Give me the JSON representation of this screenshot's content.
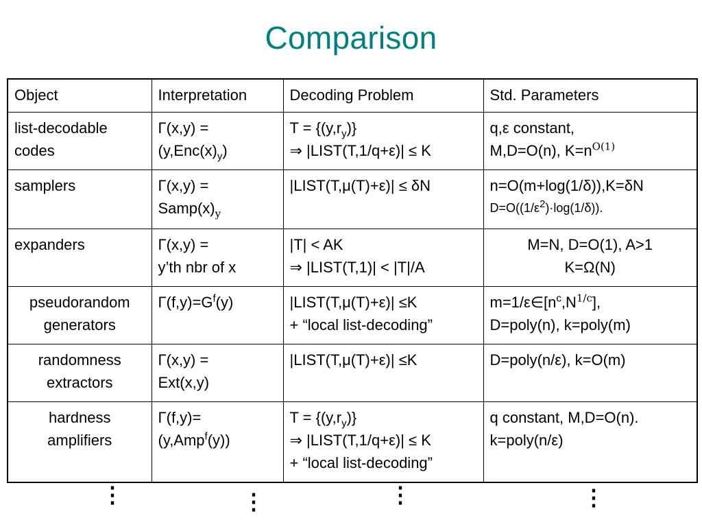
{
  "title": "Comparison",
  "table": {
    "headers": [
      "Object",
      "Interpretation",
      "Decoding Problem",
      "Std. Parameters"
    ],
    "rows": [
      {
        "object": "list-decodable codes",
        "interp_a": "Γ(x,y) =",
        "interp_b": "(y,Enc(x)",
        "interp_b_sub": "y",
        "interp_b_end": ")",
        "dec_a": "T = {(y,r",
        "dec_a_sub": "y",
        "dec_a_end": ")}",
        "dec_b": "⇒ |LIST(T,1/q+ε)| ≤ K",
        "par_a": "q,ε constant,",
        "par_b": "M,D=O(n), K=n",
        "par_b_sup": "O(1)"
      },
      {
        "object": "samplers",
        "interp_a": "Γ(x,y) =",
        "interp_b": "Samp(x)",
        "interp_b_sub": "y",
        "dec_a": "|LIST(T,μ(T)+ε)| ≤ δN",
        "par_a": "n=O(m+log(1/δ)),K=δN",
        "par_b": "D=O((1/ε",
        "par_b_sup": "2",
        "par_b_end": ")·log(1/δ))."
      },
      {
        "object": "expanders",
        "interp_a": "Γ(x,y) =",
        "interp_b": "y’th nbr of x",
        "dec_a": "|T| < AK",
        "dec_b": "⇒ |LIST(T,1)| < |T|/A",
        "par_a": "M=N,  D=O(1), A>1",
        "par_b": "K=Ω(N)"
      },
      {
        "object": "pseudorandom generators",
        "interp_a": "Γ(f,y)=G",
        "interp_a_sup": "f",
        "interp_a_end": "(y)",
        "dec_a": "|LIST(T,μ(T)+ε)| ≤K",
        "dec_b": "+ “local list-decoding”",
        "par_a": "m=1/ε∈[n",
        "par_a_sup1": "c",
        "par_a_mid": ",N",
        "par_a_sup2": "1/c",
        "par_a_end": "],",
        "par_b": "D=poly(n), k=poly(m)"
      },
      {
        "object": "randomness extractors",
        "interp_a": "Γ(x,y) =",
        "interp_b": "Ext(x,y)",
        "dec_a": "|LIST(T,μ(T)+ε)| ≤K",
        "par_a": "D=poly(n/ε), k=O(m)"
      },
      {
        "object": "hardness amplifiers",
        "interp_a": "Γ(f,y)=",
        "interp_b": "(y,Amp",
        "interp_b_sup": "f",
        "interp_b_end": "(y))",
        "dec_a": "T = {(y,r",
        "dec_a_sub": "y",
        "dec_a_end": ")}",
        "dec_b": "⇒ |LIST(T,1/q+ε)| ≤ K",
        "dec_c": "+ “local list-decoding”",
        "par_a": "q constant, M,D=O(n).",
        "par_b": "k=poly(n/ε)"
      }
    ]
  },
  "ellipsis": "⋮"
}
